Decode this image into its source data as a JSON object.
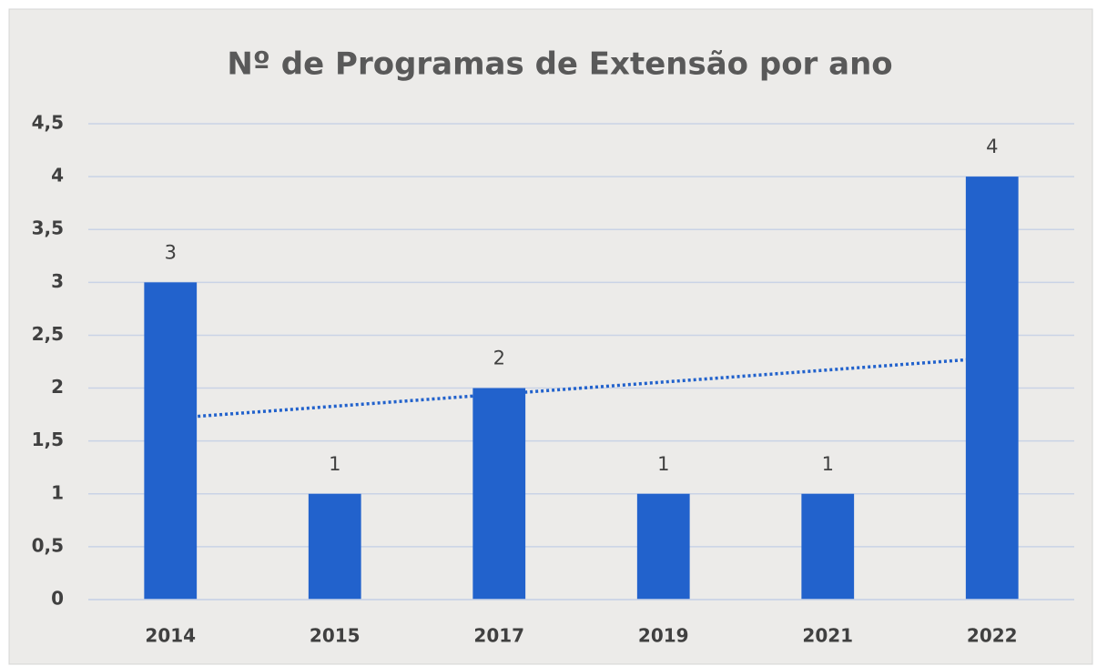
{
  "chart_data": {
    "type": "bar",
    "title": "Nº de Programas de Extensão por ano",
    "categories": [
      "2014",
      "2015",
      "2017",
      "2019",
      "2021",
      "2022"
    ],
    "values": [
      3,
      1,
      2,
      1,
      1,
      4
    ],
    "color": "#2262cc",
    "ylim": [
      0,
      4.5
    ],
    "yticks": [
      0,
      {
        "value": 0.5,
        "label": "0,5"
      },
      1,
      {
        "value": 1.5,
        "label": "1,5"
      },
      2,
      {
        "value": 2.5,
        "label": "2,5"
      },
      3,
      {
        "value": 3.5,
        "label": "3,5"
      },
      4,
      {
        "value": 4.5,
        "label": "4,5"
      }
    ],
    "grid": true,
    "data_labels": true,
    "trendline": "linear",
    "trendline_color": "#2262cc"
  }
}
